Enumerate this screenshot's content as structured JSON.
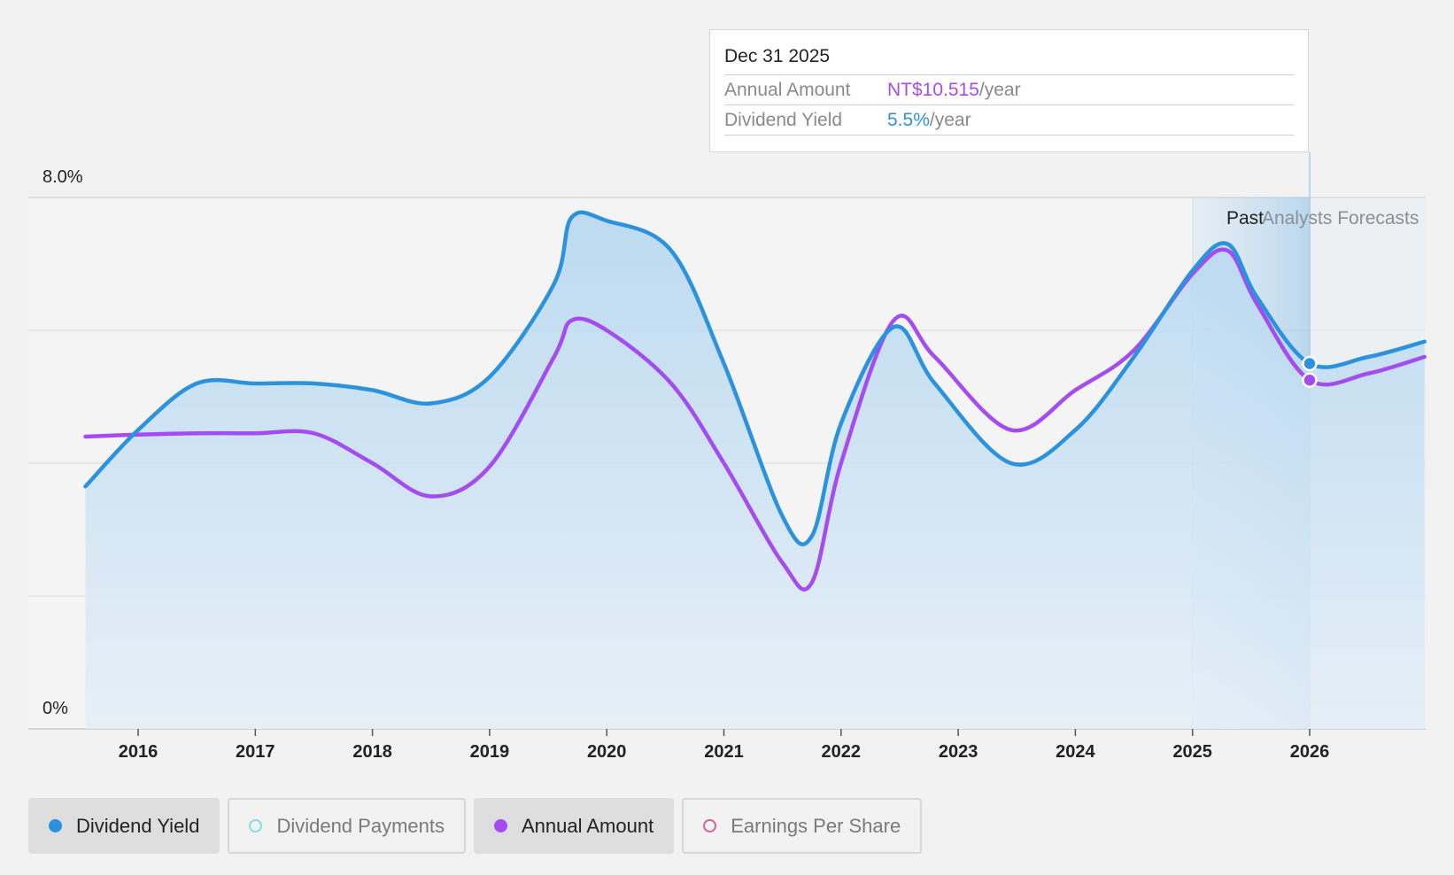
{
  "chart_data": {
    "type": "line",
    "y_axis": {
      "ticks": [
        "8.0%",
        "0%"
      ],
      "ylim": [
        0,
        8.0
      ],
      "unit": "%"
    },
    "x_axis": {
      "ticks": [
        "2016",
        "2017",
        "2018",
        "2019",
        "2020",
        "2021",
        "2022",
        "2023",
        "2024",
        "2025",
        "2026"
      ],
      "range": [
        2015.55,
        2026.98
      ]
    },
    "regions": {
      "past_label": "Past",
      "forecast_label": "Analysts Forecasts"
    },
    "series": [
      {
        "name": "Dividend Yield",
        "color": "#2b93de",
        "filled": true,
        "points": [
          [
            2015.55,
            3.65
          ],
          [
            2016.0,
            4.5
          ],
          [
            2016.5,
            5.2
          ],
          [
            2017.0,
            5.2
          ],
          [
            2017.5,
            5.2
          ],
          [
            2018.0,
            5.1
          ],
          [
            2018.5,
            4.9
          ],
          [
            2019.0,
            5.3
          ],
          [
            2019.55,
            6.7
          ],
          [
            2019.7,
            7.7
          ],
          [
            2020.0,
            7.65
          ],
          [
            2020.55,
            7.2
          ],
          [
            2021.0,
            5.5
          ],
          [
            2021.5,
            3.2
          ],
          [
            2021.75,
            2.9
          ],
          [
            2022.0,
            4.6
          ],
          [
            2022.45,
            6.05
          ],
          [
            2022.8,
            5.2
          ],
          [
            2023.45,
            4.0
          ],
          [
            2024.0,
            4.5
          ],
          [
            2024.5,
            5.6
          ],
          [
            2025.0,
            6.9
          ],
          [
            2025.3,
            7.3
          ],
          [
            2025.55,
            6.5
          ],
          [
            2026.0,
            5.5
          ],
          [
            2026.5,
            5.6
          ],
          [
            2026.98,
            5.83
          ]
        ]
      },
      {
        "name": "Annual Amount",
        "color": "#a54cf0",
        "filled": false,
        "points": [
          [
            2015.55,
            4.4
          ],
          [
            2016.0,
            4.43
          ],
          [
            2016.5,
            4.45
          ],
          [
            2017.0,
            4.45
          ],
          [
            2017.5,
            4.45
          ],
          [
            2018.0,
            4.0
          ],
          [
            2018.5,
            3.5
          ],
          [
            2019.0,
            3.95
          ],
          [
            2019.55,
            5.6
          ],
          [
            2019.7,
            6.15
          ],
          [
            2020.0,
            6.0
          ],
          [
            2020.55,
            5.2
          ],
          [
            2021.0,
            4.0
          ],
          [
            2021.5,
            2.5
          ],
          [
            2021.75,
            2.2
          ],
          [
            2022.0,
            4.0
          ],
          [
            2022.45,
            6.15
          ],
          [
            2022.8,
            5.6
          ],
          [
            2023.45,
            4.5
          ],
          [
            2024.0,
            5.1
          ],
          [
            2024.5,
            5.7
          ],
          [
            2025.0,
            6.85
          ],
          [
            2025.3,
            7.2
          ],
          [
            2025.55,
            6.4
          ],
          [
            2026.0,
            5.25
          ],
          [
            2026.5,
            5.35
          ],
          [
            2026.98,
            5.6
          ]
        ]
      }
    ],
    "highlight_x": 2026.0
  },
  "tooltip": {
    "date": "Dec 31 2025",
    "rows": [
      {
        "label": "Annual Amount",
        "value": "NT$10.515",
        "suffix": "/year"
      },
      {
        "label": "Dividend Yield",
        "value": "5.5%",
        "suffix": "/year"
      }
    ]
  },
  "legend": [
    {
      "label": "Dividend Yield",
      "color": "#2b93de",
      "active": true,
      "hollow": false
    },
    {
      "label": "Dividend Payments",
      "color": "#7fe0dc",
      "active": false,
      "hollow": true
    },
    {
      "label": "Annual Amount",
      "color": "#a54cf0",
      "active": true,
      "hollow": false
    },
    {
      "label": "Earnings Per Share",
      "color": "#d0649a",
      "active": false,
      "hollow": true
    }
  ]
}
